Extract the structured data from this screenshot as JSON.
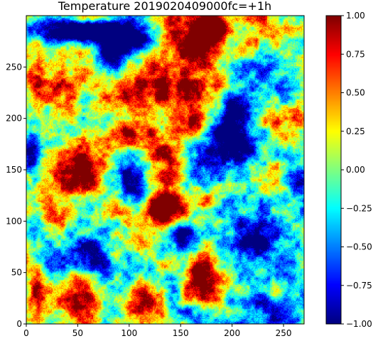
{
  "chart_data": {
    "type": "heatmap",
    "title": "Temperature 2019020409000fc=+1h",
    "xlabel": "",
    "ylabel": "",
    "xlim": [
      0,
      270
    ],
    "ylim": [
      0,
      300
    ],
    "x_ticks": [
      0,
      50,
      100,
      150,
      200,
      250
    ],
    "y_ticks": [
      0,
      50,
      100,
      150,
      200,
      250
    ],
    "colormap": "jet",
    "colorbar": {
      "vmin": -1.0,
      "vmax": 1.0,
      "ticks": [
        "−1.00",
        "−0.75",
        "−0.50",
        "−0.25",
        "0.00",
        "0.25",
        "0.50",
        "0.75",
        "1.00"
      ]
    },
    "features": [
      {
        "x": 130,
        "y": 235,
        "rx": 40,
        "ry": 30,
        "v": 1.2
      },
      {
        "x": 175,
        "y": 270,
        "rx": 30,
        "ry": 30,
        "v": 1.1
      },
      {
        "x": 185,
        "y": 290,
        "rx": 15,
        "ry": 15,
        "v": 1.3
      },
      {
        "x": 138,
        "y": 135,
        "rx": 18,
        "ry": 40,
        "v": 1.1
      },
      {
        "x": 125,
        "y": 110,
        "rx": 25,
        "ry": 12,
        "v": 1.0
      },
      {
        "x": 60,
        "y": 150,
        "rx": 25,
        "ry": 25,
        "v": 0.9
      },
      {
        "x": 95,
        "y": 185,
        "rx": 20,
        "ry": 15,
        "v": 0.9
      },
      {
        "x": 160,
        "y": 195,
        "rx": 20,
        "ry": 15,
        "v": 0.8
      },
      {
        "x": 250,
        "y": 200,
        "rx": 25,
        "ry": 12,
        "v": 0.5
      },
      {
        "x": 50,
        "y": 30,
        "rx": 20,
        "ry": 25,
        "v": 0.7
      },
      {
        "x": 10,
        "y": 30,
        "rx": 10,
        "ry": 15,
        "v": 0.8
      },
      {
        "x": 175,
        "y": 45,
        "rx": 20,
        "ry": 20,
        "v": 0.9
      },
      {
        "x": 115,
        "y": 20,
        "rx": 20,
        "ry": 15,
        "v": 0.6
      },
      {
        "x": 30,
        "y": 230,
        "rx": 20,
        "ry": 25,
        "v": 0.45
      },
      {
        "x": 130,
        "y": 60,
        "rx": 25,
        "ry": 15,
        "v": 0.5
      },
      {
        "x": 175,
        "y": 120,
        "rx": 15,
        "ry": 10,
        "v": 0.7
      },
      {
        "x": 220,
        "y": 260,
        "rx": 15,
        "ry": 10,
        "v": 0.5
      },
      {
        "x": 255,
        "y": 180,
        "rx": 12,
        "ry": 10,
        "v": 0.6
      },
      {
        "x": 40,
        "y": 105,
        "rx": 20,
        "ry": 15,
        "v": 0.3
      },
      {
        "x": 30,
        "y": 285,
        "rx": 40,
        "ry": 12,
        "v": -1.5
      },
      {
        "x": 70,
        "y": 285,
        "rx": 30,
        "ry": 10,
        "v": -1.6
      },
      {
        "x": 90,
        "y": 270,
        "rx": 25,
        "ry": 15,
        "v": -1.4
      },
      {
        "x": 95,
        "y": 145,
        "rx": 25,
        "ry": 30,
        "v": -1.2
      },
      {
        "x": 60,
        "y": 70,
        "rx": 20,
        "ry": 20,
        "v": -1.0
      },
      {
        "x": 150,
        "y": 85,
        "rx": 15,
        "ry": 20,
        "v": -1.1
      },
      {
        "x": 200,
        "y": 180,
        "rx": 30,
        "ry": 30,
        "v": -1.1
      },
      {
        "x": 235,
        "y": 90,
        "rx": 40,
        "ry": 40,
        "v": -1.0
      },
      {
        "x": 250,
        "y": 10,
        "rx": 30,
        "ry": 20,
        "v": -0.9
      },
      {
        "x": 210,
        "y": 220,
        "rx": 20,
        "ry": 20,
        "v": -1.0
      },
      {
        "x": 5,
        "y": 170,
        "rx": 8,
        "ry": 30,
        "v": -0.8
      },
      {
        "x": 260,
        "y": 140,
        "rx": 12,
        "ry": 20,
        "v": -0.9
      },
      {
        "x": 160,
        "y": 10,
        "rx": 15,
        "ry": 10,
        "v": -0.6
      },
      {
        "x": 240,
        "y": 250,
        "rx": 25,
        "ry": 20,
        "v": -0.6
      },
      {
        "x": 85,
        "y": 90,
        "rx": 15,
        "ry": 10,
        "v": -0.7
      },
      {
        "x": 10,
        "y": 240,
        "rx": 8,
        "ry": 12,
        "v": 0.7
      }
    ]
  }
}
